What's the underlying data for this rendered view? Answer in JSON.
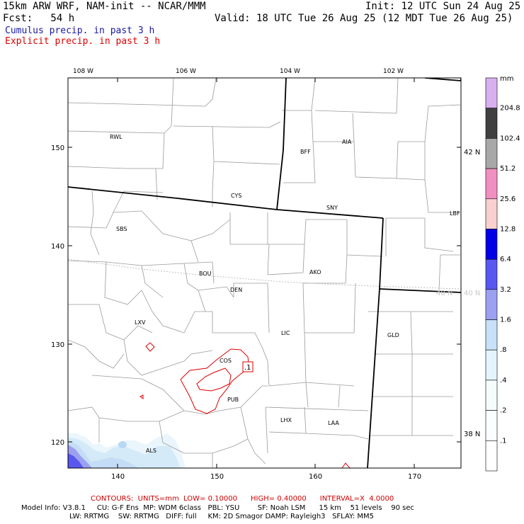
{
  "header": {
    "model_title": "15km ARW WRF, NAM-init -- NCAR/MMM",
    "init": "Init: 12 UTC Sun 24 Aug 25",
    "fcst": "Fcst:   54 h",
    "valid": "Valid: 18 UTC Tue 26 Aug 25 (12 MDT Tue 26 Aug 25)",
    "cumulus": "Cumulus precip. in past 3 h",
    "explicit": "Explicit precip. in past 3 h",
    "cumulus_color": "#1a1aa0",
    "explicit_color": "#dd0000"
  },
  "map": {
    "lon_labels": [
      "108 W",
      "106 W",
      "104 W",
      "102 W"
    ],
    "lat_labels": [
      "42 N",
      "40 N",
      "38 N"
    ],
    "x_ticks": [
      "140",
      "150",
      "160",
      "170"
    ],
    "y_ticks": [
      "150",
      "140",
      "130",
      "120"
    ],
    "stations": [
      {
        "id": "RWL",
        "label": "RWL"
      },
      {
        "id": "BFF",
        "label": "BFF"
      },
      {
        "id": "AIA",
        "label": "AIA"
      },
      {
        "id": "CYS",
        "label": "CYS"
      },
      {
        "id": "SNY",
        "label": "SNY"
      },
      {
        "id": "LBF",
        "label": "LBF"
      },
      {
        "id": "SBS",
        "label": "SBS"
      },
      {
        "id": "BOU",
        "label": "BOU"
      },
      {
        "id": "AKO",
        "label": "AKO"
      },
      {
        "id": "DEN",
        "label": "DEN"
      },
      {
        "id": "LXV",
        "label": "LXV"
      },
      {
        "id": "LIC",
        "label": "LIC"
      },
      {
        "id": "GLD",
        "label": "GLD"
      },
      {
        "id": "COS",
        "label": "COS"
      },
      {
        "id": "PUB",
        "label": "PUB"
      },
      {
        "id": "LHX",
        "label": "LHX"
      },
      {
        "id": "LAA",
        "label": "LAA"
      },
      {
        "id": "ALS",
        "label": "ALS"
      }
    ],
    "max_label": ".1",
    "contour_color": "#dd0000",
    "state_line_color": "#000000",
    "county_line_color": "#999999"
  },
  "colorbar": {
    "unit": "mm",
    "levels": [
      {
        "label": "204.8",
        "color": "#d8b0f0"
      },
      {
        "label": "102.4",
        "color": "#404040"
      },
      {
        "label": "51.2",
        "color": "#a8a8a8"
      },
      {
        "label": "25.6",
        "color": "#f090c0"
      },
      {
        "label": "12.8",
        "color": "#f8d0d0"
      },
      {
        "label": "6.4",
        "color": "#0000e8"
      },
      {
        "label": "3.2",
        "color": "#5858f0"
      },
      {
        "label": "1.6",
        "color": "#9ca0f0"
      },
      {
        "label": ".8",
        "color": "#c8e0f8"
      },
      {
        "label": ".4",
        "color": "#e4f4fc"
      },
      {
        "label": ".2",
        "color": "#f4fcfc"
      },
      {
        "label": ".1",
        "color": "#fafefe"
      },
      {
        "label": "",
        "color": "#ffffff"
      }
    ]
  },
  "footer": {
    "contours": "CONTOURS:  UNITS=mm  LOW= 0.10000      HIGH= 0.40000      INTERVAL=X  4.0000",
    "model_info_1": "Model Info: V3.8.1     CU: G-F Ens  MP: WDM 6class   PBL: YSU        SF: Noah LSM      15 km    51 levels    90 sec",
    "model_info_2": "LW: RRTMG    SW: RRTMG   DIFF: full     KM: 2D Smagor DAMP: Rayleigh3   SFLAY: MM5"
  }
}
